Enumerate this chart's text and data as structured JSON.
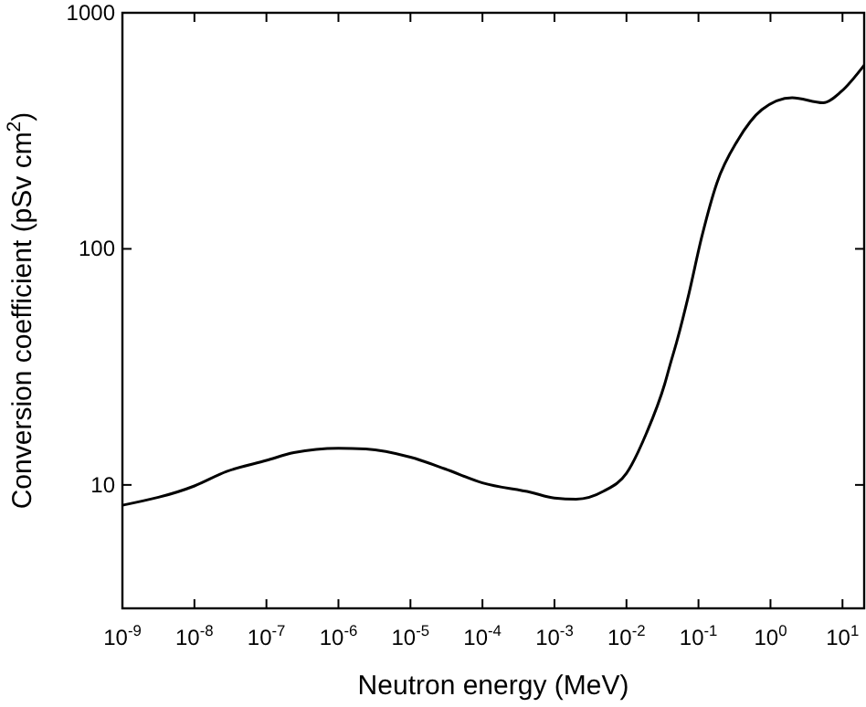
{
  "chart_data": {
    "type": "line",
    "xlabel": "Neutron energy (MeV)",
    "ylabel": "Conversion coefficient (pSv cm$^{2}$)",
    "log": "xy",
    "grid": false,
    "marker": "none",
    "line_style": "solid",
    "xlim": [
      1e-09,
      20
    ],
    "ylim": [
      3,
      1000
    ],
    "xticks": [
      {
        "value": 1e-09,
        "label": "10$^{-9}$"
      },
      {
        "value": 1e-08,
        "label": "10$^{-8}$"
      },
      {
        "value": 1e-07,
        "label": "10$^{-7}$"
      },
      {
        "value": 1e-06,
        "label": "10$^{-6}$"
      },
      {
        "value": 1e-05,
        "label": "10$^{-5}$"
      },
      {
        "value": 0.0001,
        "label": "10$^{-4}$"
      },
      {
        "value": 0.001,
        "label": "10$^{-3}$"
      },
      {
        "value": 0.01,
        "label": "10$^{-2}$"
      },
      {
        "value": 0.1,
        "label": "10$^{-1}$"
      },
      {
        "value": 1,
        "label": "10$^{0}$"
      },
      {
        "value": 10,
        "label": "10$^{1}$"
      }
    ],
    "yticks": [
      10,
      100,
      1000
    ],
    "series": [
      {
        "color": "#000000",
        "x": [
          1e-09,
          1e-08,
          2.8e-08,
          1e-07,
          2.4e-07,
          1e-06,
          2.4e-06,
          1e-05,
          3e-05,
          0.0001,
          0.00047,
          0.001,
          0.002,
          0.0048,
          0.01,
          0.019,
          0.034,
          0.04,
          0.05,
          0.074,
          0.11,
          0.18,
          0.35,
          0.76,
          2,
          5.4,
          9.6,
          20
        ],
        "values": [
          8.2,
          9.9,
          11.4,
          12.7,
          13.7,
          14.3,
          14.2,
          13.1,
          11.7,
          10.2,
          9.3,
          8.8,
          8.7,
          9.4,
          11.2,
          16.6,
          26.8,
          32,
          40.5,
          65,
          111,
          190,
          288,
          389,
          437,
          416,
          464,
          600
        ]
      }
    ]
  }
}
